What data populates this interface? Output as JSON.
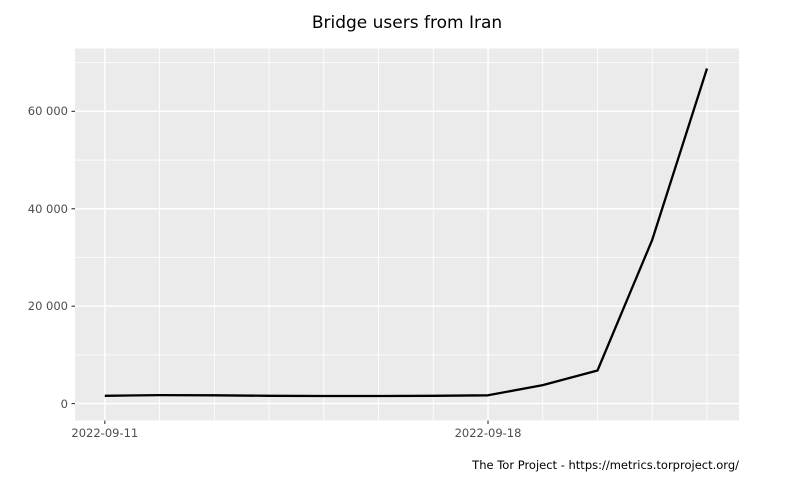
{
  "title": "Bridge users from Iran",
  "caption": "The Tor Project - https://metrics.torproject.org/",
  "chart_data": {
    "type": "line",
    "title": "Bridge users from Iran",
    "x_label": "",
    "y_label": "",
    "x": [
      "2022-09-11",
      "2022-09-12",
      "2022-09-13",
      "2022-09-14",
      "2022-09-15",
      "2022-09-16",
      "2022-09-17",
      "2022-09-18",
      "2022-09-19",
      "2022-09-20",
      "2022-09-21",
      "2022-09-22"
    ],
    "series": [
      {
        "name": "Bridge users from Iran",
        "values": [
          1600,
          1750,
          1700,
          1600,
          1550,
          1550,
          1600,
          1700,
          3800,
          6800,
          33600,
          68800
        ]
      }
    ],
    "x_tick_labels": [
      {
        "label": "2022-09-11",
        "index": 0
      },
      {
        "label": "2022-09-18",
        "index": 7
      }
    ],
    "y_tick_labels": [
      {
        "label": "0",
        "value": 0
      },
      {
        "label": "20 000",
        "value": 20000
      },
      {
        "label": "40 000",
        "value": 40000
      },
      {
        "label": "60 000",
        "value": 60000
      }
    ],
    "y_minor_gridlines": [
      10000,
      30000,
      50000,
      70000
    ],
    "ylim": [
      0,
      68800
    ],
    "grid": true,
    "legend_position": "none",
    "colors": {
      "line": "#000000",
      "panel_background": "#ebebeb",
      "gridline": "#ffffff",
      "tick_label": "#4d4d4d",
      "tick_mark": "#333333",
      "title": "#000000",
      "caption": "#000000",
      "page_background": "#ffffff"
    }
  }
}
